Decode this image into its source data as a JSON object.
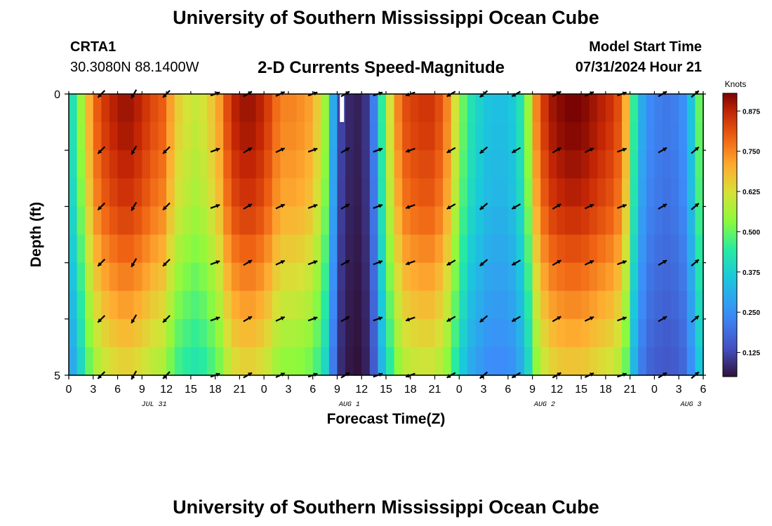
{
  "title": "University of Southern Mississippi Ocean Cube",
  "footer_title": "University of Southern Mississippi Ocean Cube",
  "station": {
    "name": "CRTA1",
    "coords": "30.3080N  88.1400W"
  },
  "model": {
    "label": "Model Start Time",
    "value": "07/31/2024 Hour 21"
  },
  "chart_data": {
    "type": "heatmap",
    "title": "2-D Currents Speed-Magnitude",
    "xlabel": "Forecast Time(Z)",
    "ylabel": "Depth (ft)",
    "colorbar_label": "Knots",
    "colorbar_ticks": [
      "0.125",
      "0.250",
      "0.375",
      "0.500",
      "0.625",
      "0.750",
      "0.875"
    ],
    "colorbar_range": [
      0.05,
      0.93
    ],
    "y_ticks": [
      "0",
      "5"
    ],
    "ylim": [
      0,
      5
    ],
    "x_tick_labels": [
      "0",
      "3",
      "6",
      "9",
      "12",
      "15",
      "18",
      "21",
      "0",
      "3",
      "6",
      "9",
      "12",
      "15",
      "18",
      "21",
      "0",
      "3",
      "6",
      "9",
      "12",
      "15",
      "18",
      "21",
      "0",
      "3",
      "6"
    ],
    "date_labels": [
      {
        "text": "JUL 31",
        "hour": 10.5
      },
      {
        "text": "AUG 1",
        "hour": 34.5
      },
      {
        "text": "AUG 2",
        "hour": 58.5
      },
      {
        "text": "AUG 3",
        "hour": 76.5
      }
    ],
    "x_range_hours": [
      0,
      78
    ],
    "surface_speed_by_hour": [
      0.42,
      0.55,
      0.7,
      0.8,
      0.85,
      0.88,
      0.9,
      0.9,
      0.88,
      0.85,
      0.82,
      0.8,
      0.72,
      0.65,
      0.62,
      0.6,
      0.62,
      0.66,
      0.72,
      0.82,
      0.88,
      0.9,
      0.9,
      0.88,
      0.84,
      0.78,
      0.75,
      0.75,
      0.74,
      0.72,
      0.66,
      0.55,
      0.3,
      0.12,
      0.08,
      0.07,
      0.1,
      0.22,
      0.45,
      0.62,
      0.75,
      0.82,
      0.84,
      0.85,
      0.85,
      0.82,
      0.75,
      0.62,
      0.5,
      0.42,
      0.38,
      0.35,
      0.34,
      0.34,
      0.36,
      0.42,
      0.55,
      0.75,
      0.85,
      0.9,
      0.92,
      0.93,
      0.93,
      0.92,
      0.9,
      0.88,
      0.86,
      0.82,
      0.7,
      0.45,
      0.3,
      0.24,
      0.22,
      0.21,
      0.22,
      0.25,
      0.35,
      0.5,
      0.75
    ],
    "depth_speed_factor": [
      1.0,
      0.99,
      0.97,
      0.95,
      0.92,
      0.88,
      0.84,
      0.8,
      0.76,
      0.72
    ],
    "arrow_hours": [
      4,
      8,
      12,
      18,
      22,
      26,
      30,
      34,
      38,
      42,
      47,
      51,
      55,
      60,
      64,
      68,
      73,
      77
    ],
    "arrow_depths_ft": [
      0,
      1,
      2,
      3,
      4,
      5
    ],
    "arrow_dir_deg_by_hour": [
      135,
      120,
      135,
      340,
      330,
      335,
      340,
      330,
      340,
      160,
      150,
      140,
      150,
      330,
      335,
      340,
      330,
      320
    ]
  }
}
